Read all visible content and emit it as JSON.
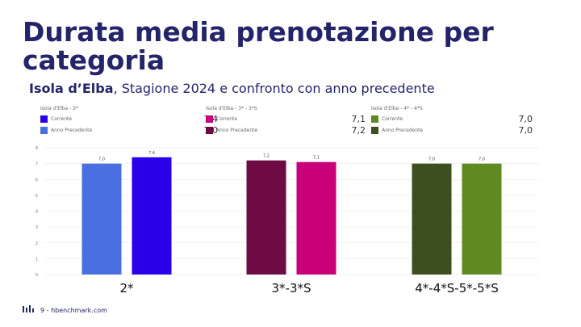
{
  "title": "Durata media prenotazione per categoria",
  "subtitle": {
    "location": "Isola d’Elba",
    "rest": ", Stagione 2024 e confronto con anno precedente"
  },
  "footer": {
    "text": "9 - hbenchmark.com",
    "logo_icon": "hbenchmark-logo-icon"
  },
  "legends": [
    {
      "title": "Isola d'Elba - 2*",
      "current_label": "Corrente",
      "previous_label": "Anno Precedente",
      "current_value": "7,4",
      "previous_value": "7,0"
    },
    {
      "title": "Isola d'Elba - 3* - 3*S",
      "current_label": "Corrente",
      "previous_label": "Anno Precedente",
      "current_value": "7,1",
      "previous_value": "7,2"
    },
    {
      "title": "Isola d'Elba - 4* - 4*S",
      "current_label": "Corrente",
      "previous_label": "Anno Precedente",
      "current_value": "7,0",
      "previous_value": "7,0"
    }
  ],
  "colors": {
    "g1_current": "#2a00e8",
    "g1_previous": "#4a6fe0",
    "g2_current": "#c8007a",
    "g2_previous": "#6e0a44",
    "g3_current": "#5f8a22",
    "g3_previous": "#3d4f1e",
    "title": "#23246a"
  },
  "chart_data": {
    "type": "bar",
    "categories": [
      "2*",
      "3*-3*S",
      "4*-4*S-5*-5*S"
    ],
    "series": [
      {
        "name": "Anno Precedente",
        "values": [
          7.0,
          7.2,
          7.0
        ],
        "labels": [
          "7,0",
          "7,2",
          "7,0"
        ]
      },
      {
        "name": "Corrente",
        "values": [
          7.4,
          7.1,
          7.0
        ],
        "labels": [
          "7,4",
          "7,1",
          "7,0"
        ]
      }
    ],
    "ylim": [
      0,
      8
    ],
    "yticks": [
      "0",
      "1",
      "2",
      "3",
      "4",
      "5",
      "6",
      "7",
      "8"
    ],
    "grid": true
  }
}
